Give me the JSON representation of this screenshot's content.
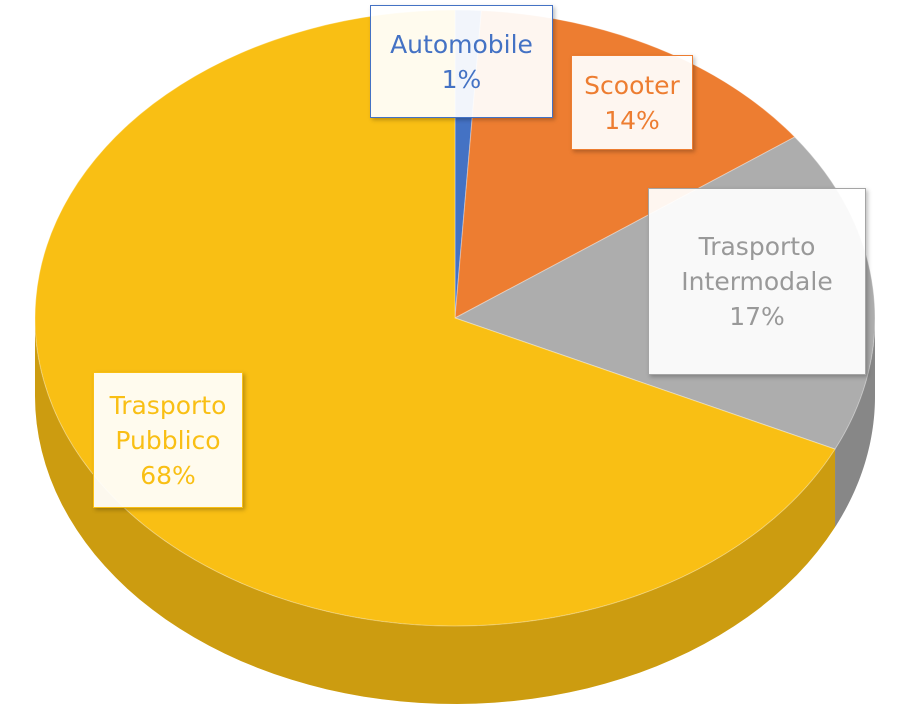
{
  "chart_data": {
    "type": "pie",
    "categories": [
      "Automobile",
      "Scooter",
      "Trasporto Intermodale",
      "Trasporto Pubblico"
    ],
    "values": [
      1,
      14,
      17,
      68
    ],
    "value_labels": [
      "1%",
      "14%",
      "17%",
      "68%"
    ],
    "colors": [
      "#4472c4",
      "#ed7d31",
      "#a5a5a5",
      "#f9bf14"
    ]
  }
}
